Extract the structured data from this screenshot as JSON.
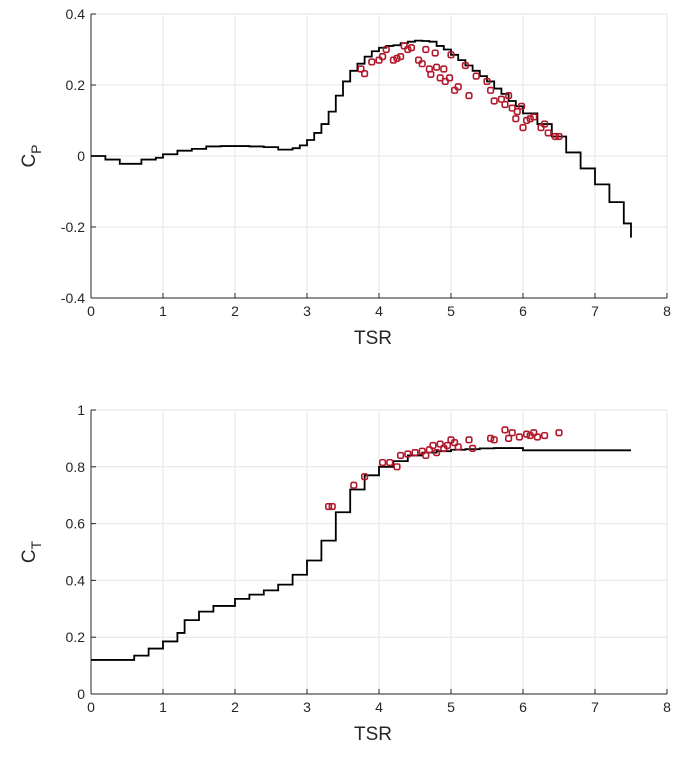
{
  "chart_data": [
    {
      "type": "line",
      "xlabel": "TSR",
      "ylabel": {
        "main": "C",
        "sub": "P"
      },
      "xlim": [
        0,
        8
      ],
      "ylim": [
        -0.4,
        0.4
      ],
      "xticks": [
        "0",
        "1",
        "2",
        "3",
        "4",
        "5",
        "6",
        "7",
        "8"
      ],
      "yticks": [
        "-0.4",
        "-0.2",
        "0",
        "0.2",
        "0.4"
      ],
      "grid": true,
      "series": [
        {
          "kind": "line",
          "color": "#000000",
          "x": [
            0,
            0.2,
            0.4,
            0.5,
            0.7,
            0.9,
            1.0,
            1.2,
            1.4,
            1.6,
            1.8,
            2.0,
            2.2,
            2.4,
            2.6,
            2.8,
            2.9,
            3.0,
            3.1,
            3.2,
            3.3,
            3.4,
            3.5,
            3.6,
            3.7,
            3.8,
            3.9,
            4.0,
            4.1,
            4.2,
            4.3,
            4.4,
            4.5,
            4.6,
            4.7,
            4.8,
            4.9,
            5.0,
            5.1,
            5.2,
            5.3,
            5.4,
            5.5,
            5.6,
            5.7,
            5.8,
            5.9,
            6.0,
            6.2,
            6.4,
            6.6,
            6.8,
            7.0,
            7.2,
            7.4,
            7.5
          ],
          "y": [
            0,
            -0.01,
            -0.022,
            -0.022,
            -0.01,
            -0.005,
            0.005,
            0.015,
            0.02,
            0.027,
            0.028,
            0.028,
            0.027,
            0.025,
            0.018,
            0.022,
            0.03,
            0.045,
            0.065,
            0.09,
            0.125,
            0.17,
            0.21,
            0.24,
            0.26,
            0.28,
            0.295,
            0.305,
            0.31,
            0.312,
            0.318,
            0.322,
            0.325,
            0.324,
            0.322,
            0.31,
            0.3,
            0.285,
            0.27,
            0.255,
            0.24,
            0.225,
            0.21,
            0.19,
            0.175,
            0.155,
            0.14,
            0.12,
            0.09,
            0.055,
            0.01,
            -0.035,
            -0.08,
            -0.13,
            -0.19,
            -0.23
          ]
        },
        {
          "kind": "scatter",
          "color": "#b2182b",
          "x": [
            3.75,
            3.8,
            3.9,
            4.0,
            4.05,
            4.1,
            4.2,
            4.25,
            4.3,
            4.35,
            4.4,
            4.45,
            4.55,
            4.6,
            4.65,
            4.7,
            4.72,
            4.78,
            4.8,
            4.85,
            4.9,
            4.92,
            4.98,
            5.0,
            5.05,
            5.1,
            5.2,
            5.25,
            5.35,
            5.5,
            5.55,
            5.6,
            5.7,
            5.75,
            5.8,
            5.85,
            5.9,
            5.92,
            5.98,
            6.0,
            6.05,
            6.1,
            6.15,
            6.25,
            6.3,
            6.35,
            6.45,
            6.5
          ],
          "y": [
            0.245,
            0.232,
            0.265,
            0.27,
            0.28,
            0.3,
            0.27,
            0.275,
            0.28,
            0.31,
            0.3,
            0.305,
            0.27,
            0.26,
            0.3,
            0.245,
            0.23,
            0.29,
            0.25,
            0.22,
            0.245,
            0.21,
            0.22,
            0.285,
            0.185,
            0.195,
            0.255,
            0.17,
            0.225,
            0.21,
            0.185,
            0.155,
            0.16,
            0.145,
            0.17,
            0.135,
            0.105,
            0.125,
            0.14,
            0.08,
            0.1,
            0.105,
            0.11,
            0.08,
            0.09,
            0.065,
            0.055,
            0.055
          ]
        }
      ]
    },
    {
      "type": "line",
      "xlabel": "TSR",
      "ylabel": {
        "main": "C",
        "sub": "T"
      },
      "xlim": [
        0,
        8
      ],
      "ylim": [
        0,
        1
      ],
      "xticks": [
        "0",
        "1",
        "2",
        "3",
        "4",
        "5",
        "6",
        "7",
        "8"
      ],
      "yticks": [
        "0",
        "0.2",
        "0.4",
        "0.6",
        "0.8",
        "1"
      ],
      "grid": true,
      "series": [
        {
          "kind": "line",
          "color": "#000000",
          "x": [
            0,
            0.25,
            0.5,
            0.6,
            0.8,
            1.0,
            1.2,
            1.3,
            1.5,
            1.7,
            2.0,
            2.2,
            2.4,
            2.6,
            2.8,
            3.0,
            3.2,
            3.4,
            3.6,
            3.8,
            4.0,
            4.2,
            4.4,
            4.6,
            4.8,
            5.0,
            5.2,
            5.4,
            5.6,
            5.8,
            6.0,
            6.5,
            7.0,
            7.5
          ],
          "y": [
            0.12,
            0.12,
            0.12,
            0.135,
            0.16,
            0.185,
            0.215,
            0.26,
            0.29,
            0.31,
            0.335,
            0.35,
            0.365,
            0.385,
            0.42,
            0.47,
            0.54,
            0.64,
            0.72,
            0.77,
            0.8,
            0.82,
            0.84,
            0.85,
            0.855,
            0.86,
            0.862,
            0.865,
            0.866,
            0.866,
            0.858,
            0.858,
            0.858,
            0.858
          ]
        },
        {
          "kind": "scatter",
          "color": "#b2182b",
          "x": [
            3.3,
            3.35,
            3.65,
            3.8,
            4.05,
            4.15,
            4.25,
            4.3,
            4.4,
            4.5,
            4.6,
            4.65,
            4.7,
            4.75,
            4.8,
            4.85,
            4.9,
            4.95,
            5.0,
            5.05,
            5.1,
            5.25,
            5.3,
            5.55,
            5.6,
            5.75,
            5.8,
            5.85,
            5.95,
            6.05,
            6.1,
            6.15,
            6.2,
            6.3,
            6.5
          ],
          "y": [
            0.66,
            0.66,
            0.735,
            0.765,
            0.815,
            0.815,
            0.8,
            0.84,
            0.845,
            0.85,
            0.855,
            0.84,
            0.86,
            0.875,
            0.85,
            0.88,
            0.865,
            0.875,
            0.895,
            0.885,
            0.87,
            0.895,
            0.865,
            0.9,
            0.895,
            0.93,
            0.9,
            0.92,
            0.905,
            0.915,
            0.91,
            0.92,
            0.905,
            0.91,
            0.92
          ]
        }
      ]
    }
  ]
}
